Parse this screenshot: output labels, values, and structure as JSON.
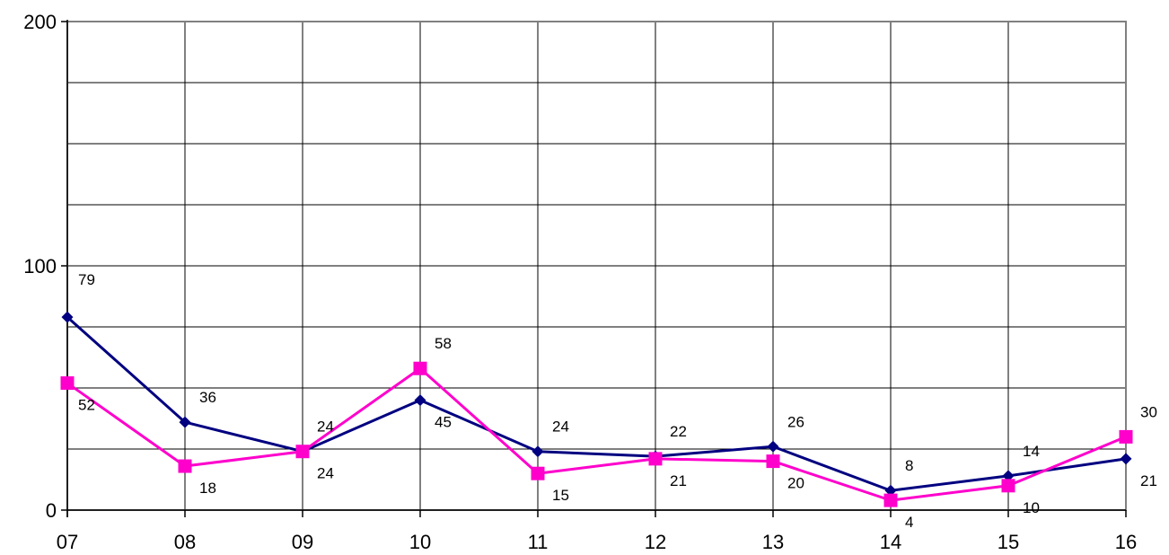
{
  "chart_data": {
    "type": "line",
    "title": "",
    "xlabel": "",
    "ylabel": "",
    "categories": [
      "07",
      "08",
      "09",
      "10",
      "11",
      "12",
      "13",
      "14",
      "15",
      "16"
    ],
    "ylim": [
      0,
      200
    ],
    "y_ticks": [
      "0",
      "100",
      "200"
    ],
    "grid": true,
    "legend": "none",
    "series": [
      {
        "color": "#000080",
        "marker": "diamond",
        "values": [
          79,
          36,
          24,
          45,
          24,
          22,
          26,
          8,
          14,
          21
        ]
      },
      {
        "color": "#FF00CC",
        "marker": "square",
        "values": [
          52,
          18,
          24,
          58,
          15,
          21,
          20,
          4,
          10,
          30
        ]
      }
    ]
  }
}
